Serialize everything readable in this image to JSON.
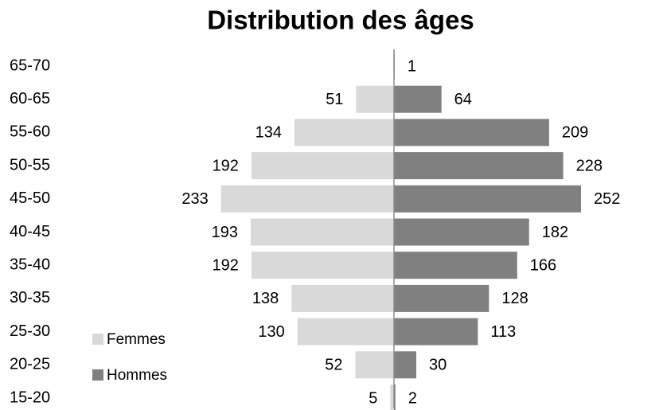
{
  "chart_data": {
    "type": "pyramid",
    "title": "Distribution des âges",
    "categories": [
      "65-70",
      "60-65",
      "55-60",
      "50-55",
      "45-50",
      "40-45",
      "35-40",
      "30-35",
      "25-30",
      "20-25",
      "15-20"
    ],
    "series": [
      {
        "name": "Femmes",
        "color": "#d9d9d9",
        "side": "left",
        "values": [
          null,
          51,
          134,
          192,
          233,
          193,
          192,
          138,
          130,
          52,
          5
        ]
      },
      {
        "name": "Hommes",
        "color": "#808080",
        "side": "right",
        "values": [
          1,
          64,
          209,
          228,
          252,
          182,
          166,
          128,
          113,
          30,
          2
        ]
      }
    ],
    "legend": "bottom-left"
  }
}
